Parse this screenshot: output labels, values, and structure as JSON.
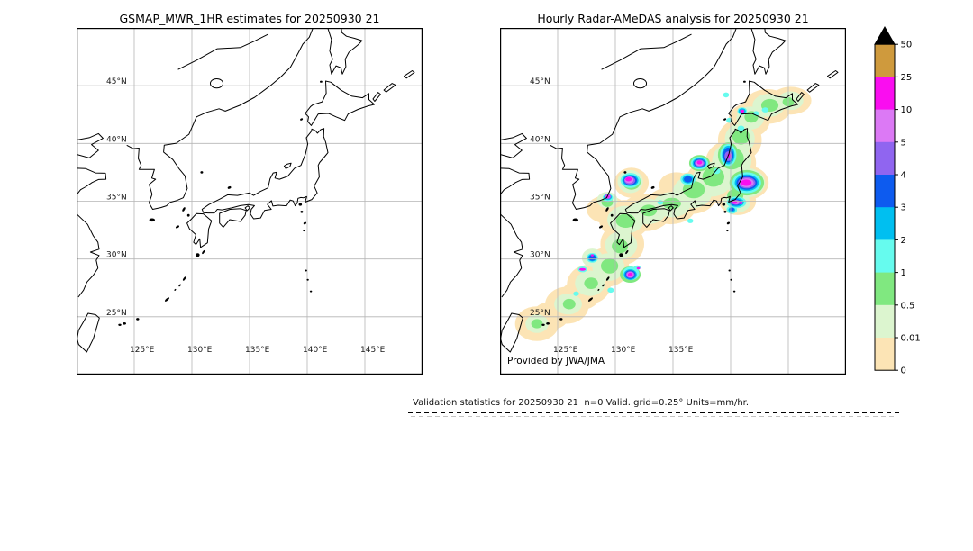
{
  "left_map": {
    "title": "GSMAP_MWR_1HR estimates for 20250930 21",
    "lon_labels_shown": [
      "125°E",
      "130°E",
      "135°E",
      "140°E",
      "145°E"
    ],
    "has_precip_overlay": false
  },
  "right_map": {
    "title": "Hourly Radar-AMeDAS analysis for 20250930 21",
    "credit": "Provided by JWA/JMA",
    "lon_labels_shown": [
      "125°E",
      "130°E",
      "135°E"
    ],
    "has_precip_overlay": true
  },
  "axes": {
    "lat_ticks": [
      {
        "label": "45°N",
        "lat": 45
      },
      {
        "label": "40°N",
        "lat": 40
      },
      {
        "label": "35°N",
        "lat": 35
      },
      {
        "label": "30°N",
        "lat": 30
      },
      {
        "label": "25°N",
        "lat": 25
      }
    ],
    "lon_ticks": [
      {
        "label": "125°E",
        "lon": 125
      },
      {
        "label": "130°E",
        "lon": 130
      },
      {
        "label": "135°E",
        "lon": 135
      },
      {
        "label": "140°E",
        "lon": 140
      },
      {
        "label": "145°E",
        "lon": 145
      }
    ],
    "lon_extent": [
      120,
      150
    ],
    "lat_extent": [
      20,
      50
    ],
    "gridline_color": "#b5b5b5",
    "coastline_color": "#000000"
  },
  "colorbar": {
    "units_implied": "mm/hr",
    "levels": [
      "0",
      "0.01",
      "0.5",
      "1",
      "2",
      "3",
      "4",
      "5",
      "10",
      "25",
      "50"
    ],
    "colors": [
      "#fce4b5",
      "#dcf5cf",
      "#80e880",
      "#66fbee",
      "#00bff0",
      "#0d5bef",
      "#9065f0",
      "#dc79f5",
      "#fa0df0",
      "#cf9a3d"
    ],
    "over_color": "#000000"
  },
  "annotation": {
    "text": "Validation statistics for 20250930 21  n=0 Valid. grid=0.25° Units=mm/hr."
  },
  "precip_cells": {
    "level_ranges": [
      "0-0.01",
      "0.01-0.5",
      "0.5-1",
      "1-2",
      "2-3",
      "3-4",
      "4-5",
      "5-10",
      "10-25"
    ],
    "cells": [
      [
        123.2,
        24.4,
        1.9,
        1.5,
        0
      ],
      [
        124.4,
        25.1,
        1.6,
        1.2,
        0
      ],
      [
        125.8,
        26.0,
        1.9,
        1.6,
        0
      ],
      [
        127.0,
        26.9,
        1.7,
        1.3,
        0
      ],
      [
        127.7,
        27.8,
        1.9,
        1.7,
        0
      ],
      [
        129.3,
        29.3,
        1.9,
        1.7,
        0
      ],
      [
        130.6,
        31.3,
        1.9,
        1.8,
        0
      ],
      [
        130.8,
        33.4,
        2.2,
        1.7,
        0
      ],
      [
        129.2,
        34.3,
        1.7,
        1.2,
        0
      ],
      [
        132.6,
        34.0,
        2.2,
        1.6,
        0
      ],
      [
        134.8,
        34.6,
        2.2,
        1.6,
        0
      ],
      [
        136.6,
        35.7,
        2.3,
        1.8,
        0
      ],
      [
        138.4,
        36.7,
        2.3,
        1.9,
        0
      ],
      [
        140.0,
        38.3,
        2.2,
        2.0,
        0
      ],
      [
        140.8,
        40.3,
        1.9,
        1.8,
        0
      ],
      [
        141.6,
        42.0,
        1.8,
        1.5,
        0
      ],
      [
        143.2,
        43.2,
        2.1,
        1.5,
        0
      ],
      [
        145.2,
        43.7,
        1.8,
        1.2,
        0
      ],
      [
        131.4,
        36.6,
        1.5,
        1.3,
        0
      ],
      [
        135.3,
        36.4,
        1.5,
        1.1,
        0
      ],
      [
        141.3,
        36.6,
        2.0,
        1.5,
        0
      ],
      [
        140.6,
        35.0,
        1.6,
        1.2,
        0
      ],
      [
        123.2,
        24.4,
        1.0,
        0.8,
        1
      ],
      [
        125.9,
        26.1,
        1.2,
        0.9,
        1
      ],
      [
        127.8,
        27.9,
        1.3,
        1.1,
        1
      ],
      [
        129.4,
        29.3,
        1.4,
        1.2,
        1
      ],
      [
        130.5,
        31.2,
        1.4,
        1.2,
        1
      ],
      [
        130.9,
        33.4,
        1.6,
        1.2,
        1
      ],
      [
        132.8,
        34.1,
        1.6,
        1.1,
        1
      ],
      [
        134.9,
        34.7,
        1.6,
        1.1,
        1
      ],
      [
        136.7,
        35.8,
        1.7,
        1.4,
        1
      ],
      [
        138.4,
        36.9,
        1.7,
        1.5,
        1
      ],
      [
        140.1,
        38.5,
        1.7,
        1.6,
        1
      ],
      [
        140.8,
        40.4,
        1.3,
        1.3,
        1
      ],
      [
        141.7,
        42.2,
        1.2,
        1.0,
        1
      ],
      [
        143.3,
        43.3,
        1.4,
        1.0,
        1
      ],
      [
        145.2,
        43.7,
        1.1,
        0.8,
        1
      ],
      [
        131.3,
        36.7,
        1.1,
        1.0,
        1
      ],
      [
        129.3,
        35.1,
        0.9,
        0.7,
        1
      ],
      [
        141.3,
        36.6,
        1.7,
        1.3,
        1
      ],
      [
        140.5,
        34.9,
        1.2,
        0.9,
        1
      ],
      [
        128.0,
        30.1,
        0.9,
        0.8,
        1
      ],
      [
        130.9,
        33.3,
        0.85,
        0.6,
        2
      ],
      [
        132.9,
        34.2,
        0.7,
        0.5,
        2
      ],
      [
        134.9,
        34.8,
        0.8,
        0.5,
        2
      ],
      [
        136.8,
        36.0,
        0.95,
        0.75,
        2
      ],
      [
        138.5,
        37.1,
        0.95,
        0.85,
        2
      ],
      [
        140.1,
        38.7,
        1.05,
        0.95,
        2
      ],
      [
        140.9,
        40.6,
        0.75,
        0.7,
        2
      ],
      [
        141.8,
        42.3,
        0.6,
        0.5,
        2
      ],
      [
        143.4,
        43.3,
        0.75,
        0.55,
        2
      ],
      [
        129.5,
        29.4,
        0.75,
        0.65,
        2
      ],
      [
        130.4,
        31.1,
        0.7,
        0.6,
        2
      ],
      [
        127.9,
        27.9,
        0.6,
        0.5,
        2
      ],
      [
        126.0,
        26.1,
        0.55,
        0.45,
        2
      ],
      [
        131.4,
        36.7,
        0.8,
        0.7,
        2
      ],
      [
        140.4,
        35.5,
        0.7,
        0.55,
        2
      ],
      [
        141.4,
        36.6,
        1.5,
        1.1,
        2
      ],
      [
        129.3,
        34.9,
        0.5,
        0.4,
        2
      ],
      [
        123.2,
        24.4,
        0.5,
        0.4,
        2
      ],
      [
        145.0,
        43.6,
        0.5,
        0.4,
        2
      ],
      [
        137.3,
        38.3,
        0.9,
        0.7,
        2
      ],
      [
        139.8,
        39.0,
        0.9,
        1.1,
        2
      ],
      [
        131.3,
        28.65,
        0.9,
        0.7,
        2
      ],
      [
        141.4,
        36.6,
        1.25,
        0.9,
        3
      ],
      [
        139.8,
        39.0,
        0.7,
        0.95,
        3
      ],
      [
        137.3,
        38.3,
        0.75,
        0.55,
        3
      ],
      [
        136.3,
        36.9,
        0.65,
        0.5,
        3
      ],
      [
        131.3,
        36.8,
        0.85,
        0.65,
        3
      ],
      [
        129.35,
        35.3,
        0.45,
        0.35,
        3
      ],
      [
        140.5,
        34.9,
        0.85,
        0.5,
        3
      ],
      [
        140.1,
        34.25,
        0.45,
        0.35,
        3
      ],
      [
        131.35,
        28.75,
        0.72,
        0.58,
        3
      ],
      [
        131.9,
        29.25,
        0.3,
        0.2,
        3
      ],
      [
        128.0,
        30.1,
        0.5,
        0.42,
        3
      ],
      [
        127.15,
        29.1,
        0.4,
        0.25,
        3
      ],
      [
        141.0,
        42.8,
        0.42,
        0.33,
        3
      ],
      [
        139.9,
        42.0,
        0.28,
        0.22,
        3
      ],
      [
        139.6,
        44.2,
        0.26,
        0.22,
        3
      ],
      [
        129.6,
        27.3,
        0.28,
        0.22,
        3
      ],
      [
        136.5,
        33.3,
        0.26,
        0.2,
        3
      ],
      [
        140.9,
        41.3,
        0.3,
        0.25,
        3
      ],
      [
        143.0,
        42.9,
        0.3,
        0.22,
        3
      ],
      [
        133.9,
        34.9,
        0.25,
        0.2,
        3
      ],
      [
        138.8,
        37.6,
        0.3,
        0.25,
        3
      ],
      [
        142.2,
        42.6,
        0.25,
        0.2,
        3
      ],
      [
        126.6,
        27.0,
        0.25,
        0.2,
        3
      ],
      [
        141.4,
        36.6,
        1.05,
        0.72,
        4
      ],
      [
        139.8,
        39.0,
        0.55,
        0.8,
        4
      ],
      [
        137.3,
        38.3,
        0.6,
        0.45,
        4
      ],
      [
        136.3,
        36.9,
        0.48,
        0.36,
        4
      ],
      [
        131.3,
        36.8,
        0.7,
        0.5,
        4
      ],
      [
        140.5,
        34.9,
        0.65,
        0.38,
        4
      ],
      [
        131.3,
        28.65,
        0.56,
        0.46,
        4
      ],
      [
        128.0,
        30.1,
        0.4,
        0.32,
        4
      ],
      [
        129.35,
        35.35,
        0.35,
        0.25,
        4
      ],
      [
        141.0,
        42.8,
        0.32,
        0.25,
        4
      ],
      [
        140.1,
        34.25,
        0.3,
        0.22,
        4
      ],
      [
        141.4,
        36.6,
        0.9,
        0.6,
        5
      ],
      [
        139.8,
        39.0,
        0.45,
        0.65,
        5
      ],
      [
        137.3,
        38.3,
        0.5,
        0.37,
        5
      ],
      [
        136.3,
        36.9,
        0.35,
        0.27,
        5
      ],
      [
        131.3,
        36.8,
        0.58,
        0.42,
        5
      ],
      [
        140.45,
        34.9,
        0.5,
        0.28,
        5
      ],
      [
        131.3,
        28.65,
        0.46,
        0.37,
        5
      ],
      [
        128.0,
        30.1,
        0.3,
        0.25,
        5
      ],
      [
        140.1,
        34.3,
        0.2,
        0.15,
        5
      ],
      [
        141.4,
        36.6,
        0.75,
        0.48,
        6
      ],
      [
        137.3,
        38.3,
        0.42,
        0.3,
        6
      ],
      [
        131.25,
        36.8,
        0.48,
        0.35,
        6
      ],
      [
        139.8,
        38.9,
        0.32,
        0.42,
        6
      ],
      [
        140.45,
        34.9,
        0.38,
        0.22,
        6
      ],
      [
        131.3,
        28.65,
        0.38,
        0.3,
        6
      ],
      [
        129.35,
        35.4,
        0.28,
        0.2,
        6
      ],
      [
        141.4,
        36.6,
        0.6,
        0.38,
        7
      ],
      [
        137.3,
        38.3,
        0.33,
        0.23,
        7
      ],
      [
        131.2,
        36.85,
        0.38,
        0.28,
        7
      ],
      [
        140.45,
        34.9,
        0.28,
        0.17,
        7
      ],
      [
        131.3,
        28.65,
        0.3,
        0.24,
        7
      ],
      [
        129.35,
        35.4,
        0.2,
        0.14,
        7
      ],
      [
        141.35,
        36.6,
        0.46,
        0.27,
        8
      ],
      [
        137.3,
        38.35,
        0.23,
        0.16,
        8
      ],
      [
        131.15,
        36.9,
        0.28,
        0.18,
        8
      ],
      [
        140.35,
        34.9,
        0.2,
        0.13,
        8
      ],
      [
        140.9,
        34.85,
        0.16,
        0.11,
        8
      ],
      [
        131.3,
        28.65,
        0.22,
        0.17,
        8
      ],
      [
        127.15,
        29.1,
        0.28,
        0.12,
        8
      ],
      [
        132.0,
        29.2,
        0.15,
        0.1,
        8
      ],
      [
        129.35,
        35.4,
        0.16,
        0.1,
        8
      ],
      [
        141.0,
        42.8,
        0.18,
        0.13,
        8
      ],
      [
        139.85,
        38.95,
        0.13,
        0.18,
        8
      ],
      [
        128.0,
        30.32,
        0.12,
        0.09,
        8
      ]
    ]
  }
}
